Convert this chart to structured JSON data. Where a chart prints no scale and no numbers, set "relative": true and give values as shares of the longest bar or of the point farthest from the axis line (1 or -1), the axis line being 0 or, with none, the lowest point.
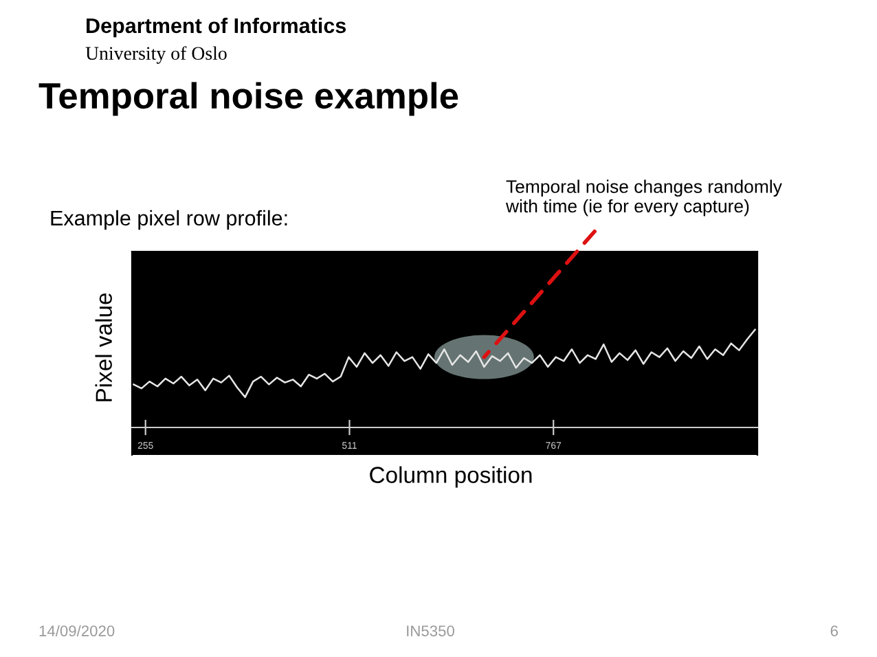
{
  "chart_data": {
    "type": "line",
    "title": "Temporal noise example",
    "subtitle": "Example pixel row profile:",
    "xlabel": "Column position",
    "ylabel": "Pixel value",
    "relative": true,
    "annotations": [
      {
        "text": "Temporal noise changes randomly\nwith time (ie for every capture)",
        "x": 680,
        "y": 0.72
      },
      "Department of Informatics",
      "University of Oslo",
      "14/09/2020",
      "IN5350",
      "6"
    ],
    "xlim": [
      238,
      1023
    ],
    "xticks": [
      255,
      511,
      767
    ],
    "x": [
      240,
      250,
      260,
      270,
      280,
      290,
      300,
      310,
      320,
      330,
      340,
      350,
      360,
      370,
      380,
      390,
      400,
      410,
      420,
      430,
      440,
      450,
      460,
      470,
      480,
      490,
      500,
      510,
      520,
      530,
      540,
      550,
      560,
      570,
      580,
      590,
      600,
      610,
      620,
      630,
      640,
      650,
      660,
      670,
      680,
      690,
      700,
      710,
      720,
      730,
      740,
      750,
      760,
      770,
      780,
      790,
      800,
      810,
      820,
      830,
      840,
      850,
      860,
      870,
      880,
      890,
      900,
      910,
      920,
      930,
      940,
      950,
      960,
      970,
      980,
      990,
      1000,
      1010,
      1020
    ],
    "series": [
      {
        "color": "#e6e6e6",
        "values": [
          0.44,
          0.4,
          0.47,
          0.42,
          0.5,
          0.45,
          0.52,
          0.43,
          0.49,
          0.38,
          0.5,
          0.46,
          0.53,
          0.41,
          0.31,
          0.47,
          0.52,
          0.44,
          0.51,
          0.46,
          0.49,
          0.42,
          0.54,
          0.5,
          0.55,
          0.47,
          0.52,
          0.72,
          0.62,
          0.76,
          0.66,
          0.74,
          0.63,
          0.77,
          0.68,
          0.72,
          0.6,
          0.75,
          0.66,
          0.8,
          0.64,
          0.74,
          0.67,
          0.78,
          0.62,
          0.73,
          0.68,
          0.76,
          0.61,
          0.71,
          0.66,
          0.74,
          0.62,
          0.72,
          0.68,
          0.8,
          0.66,
          0.74,
          0.7,
          0.85,
          0.67,
          0.76,
          0.69,
          0.79,
          0.65,
          0.77,
          0.72,
          0.81,
          0.68,
          0.78,
          0.71,
          0.83,
          0.7,
          0.8,
          0.74,
          0.86,
          0.79,
          0.9,
          1.0
        ]
      }
    ],
    "line_style": "solid"
  }
}
